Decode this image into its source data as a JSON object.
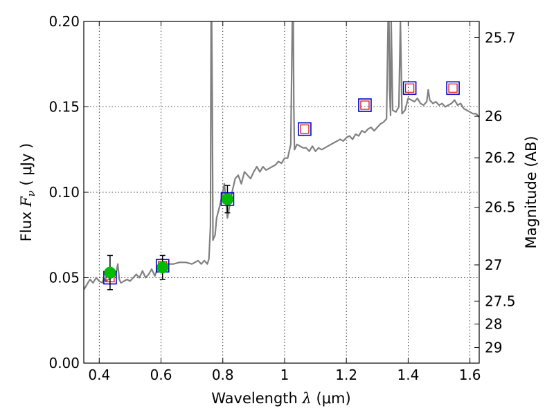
{
  "chart_data": {
    "type": "scatter",
    "xlabel": {
      "pre": "Wavelength ",
      "sym": "λ",
      "post": " (μm)"
    },
    "ylabel": {
      "pre": "Flux ",
      "sym": "F",
      "sub": "ν",
      "post": " ( μJy )"
    },
    "y2label": "Magnitude (AB)",
    "xlim": [
      0.35,
      1.63
    ],
    "ylim": [
      0.0,
      0.2
    ],
    "xticks": [
      0.4,
      0.6,
      0.8,
      1.0,
      1.2,
      1.4,
      1.6
    ],
    "xtick_labels": [
      "0.4",
      "0.6",
      "0.8",
      "1",
      "1.2",
      "1.4",
      "1.6"
    ],
    "yticks": [
      0.0,
      0.05,
      0.1,
      0.15,
      0.2
    ],
    "ytick_labels": [
      "0.00",
      "0.05",
      "0.10",
      "0.15",
      "0.20"
    ],
    "y2ticks": [
      {
        "label": "25.7",
        "flux": 0.1905
      },
      {
        "label": "26",
        "flux": 0.1445
      },
      {
        "label": "26.2",
        "flux": 0.1202
      },
      {
        "label": "26.5",
        "flux": 0.0912
      },
      {
        "label": "27",
        "flux": 0.0575
      },
      {
        "label": "27.5",
        "flux": 0.0363
      },
      {
        "label": "28",
        "flux": 0.0229
      },
      {
        "label": "29",
        "flux": 0.0091
      }
    ],
    "grid": true,
    "colors": {
      "spectrum": "#808080",
      "observed_marker": "#00bb00",
      "model_box": "#0000cc",
      "model_inner": "#dd0000",
      "errorbar": "#000000"
    },
    "series": [
      {
        "kind": "spectrum",
        "x": [
          0.35,
          0.36,
          0.37,
          0.38,
          0.39,
          0.4,
          0.41,
          0.415,
          0.42,
          0.43,
          0.44,
          0.45,
          0.455,
          0.46,
          0.465,
          0.47,
          0.48,
          0.49,
          0.5,
          0.51,
          0.52,
          0.53,
          0.54,
          0.55,
          0.56,
          0.57,
          0.58,
          0.59,
          0.6,
          0.61,
          0.62,
          0.64,
          0.66,
          0.68,
          0.7,
          0.72,
          0.73,
          0.74,
          0.75,
          0.755,
          0.76,
          0.762,
          0.764,
          0.766,
          0.768,
          0.77,
          0.775,
          0.78,
          0.79,
          0.8,
          0.805,
          0.81,
          0.815,
          0.82,
          0.83,
          0.84,
          0.85,
          0.86,
          0.87,
          0.88,
          0.89,
          0.9,
          0.91,
          0.92,
          0.93,
          0.94,
          0.95,
          0.96,
          0.97,
          0.98,
          0.99,
          1.0,
          1.01,
          1.02,
          1.025,
          1.028,
          1.03,
          1.032,
          1.035,
          1.04,
          1.05,
          1.06,
          1.07,
          1.08,
          1.09,
          1.1,
          1.11,
          1.12,
          1.13,
          1.14,
          1.15,
          1.16,
          1.17,
          1.18,
          1.19,
          1.2,
          1.21,
          1.22,
          1.23,
          1.24,
          1.25,
          1.26,
          1.27,
          1.28,
          1.29,
          1.3,
          1.31,
          1.32,
          1.33,
          1.335,
          1.338,
          1.34,
          1.343,
          1.345,
          1.35,
          1.36,
          1.37,
          1.375,
          1.38,
          1.39,
          1.4,
          1.41,
          1.42,
          1.43,
          1.44,
          1.45,
          1.46,
          1.465,
          1.47,
          1.48,
          1.49,
          1.5,
          1.51,
          1.52,
          1.53,
          1.54,
          1.55,
          1.56,
          1.57,
          1.58,
          1.59,
          1.6,
          1.61,
          1.62,
          1.63
        ],
        "y": [
          0.043,
          0.046,
          0.049,
          0.047,
          0.05,
          0.048,
          0.047,
          0.05,
          0.048,
          0.049,
          0.05,
          0.051,
          0.053,
          0.058,
          0.049,
          0.047,
          0.048,
          0.049,
          0.048,
          0.05,
          0.052,
          0.05,
          0.054,
          0.05,
          0.052,
          0.055,
          0.051,
          0.056,
          0.056,
          0.057,
          0.058,
          0.058,
          0.059,
          0.059,
          0.058,
          0.06,
          0.058,
          0.06,
          0.058,
          0.061,
          0.08,
          0.2,
          0.2,
          0.15,
          0.072,
          0.073,
          0.075,
          0.085,
          0.092,
          0.1,
          0.105,
          0.095,
          0.085,
          0.09,
          0.1,
          0.108,
          0.11,
          0.105,
          0.112,
          0.11,
          0.108,
          0.112,
          0.115,
          0.112,
          0.115,
          0.113,
          0.114,
          0.115,
          0.116,
          0.118,
          0.117,
          0.12,
          0.12,
          0.128,
          0.2,
          0.2,
          0.15,
          0.125,
          0.126,
          0.128,
          0.127,
          0.126,
          0.126,
          0.124,
          0.127,
          0.124,
          0.126,
          0.125,
          0.126,
          0.127,
          0.128,
          0.129,
          0.13,
          0.131,
          0.13,
          0.132,
          0.133,
          0.131,
          0.134,
          0.133,
          0.136,
          0.135,
          0.137,
          0.138,
          0.136,
          0.138,
          0.14,
          0.141,
          0.143,
          0.2,
          0.2,
          0.16,
          0.145,
          0.2,
          0.148,
          0.147,
          0.15,
          0.2,
          0.146,
          0.148,
          0.155,
          0.154,
          0.153,
          0.155,
          0.152,
          0.151,
          0.153,
          0.16,
          0.154,
          0.152,
          0.153,
          0.151,
          0.152,
          0.15,
          0.151,
          0.152,
          0.154,
          0.151,
          0.152,
          0.149,
          0.148,
          0.147,
          0.146,
          0.146,
          0.144
        ]
      },
      {
        "kind": "observed",
        "x": [
          0.435,
          0.605,
          0.815
        ],
        "y": [
          0.053,
          0.056,
          0.096
        ],
        "yerr": [
          0.01,
          0.007,
          0.008
        ]
      },
      {
        "kind": "model",
        "x": [
          0.435,
          0.605,
          0.815,
          1.065,
          1.26,
          1.405,
          1.545
        ],
        "y": [
          0.05,
          0.057,
          0.096,
          0.137,
          0.151,
          0.161,
          0.161
        ]
      }
    ]
  }
}
